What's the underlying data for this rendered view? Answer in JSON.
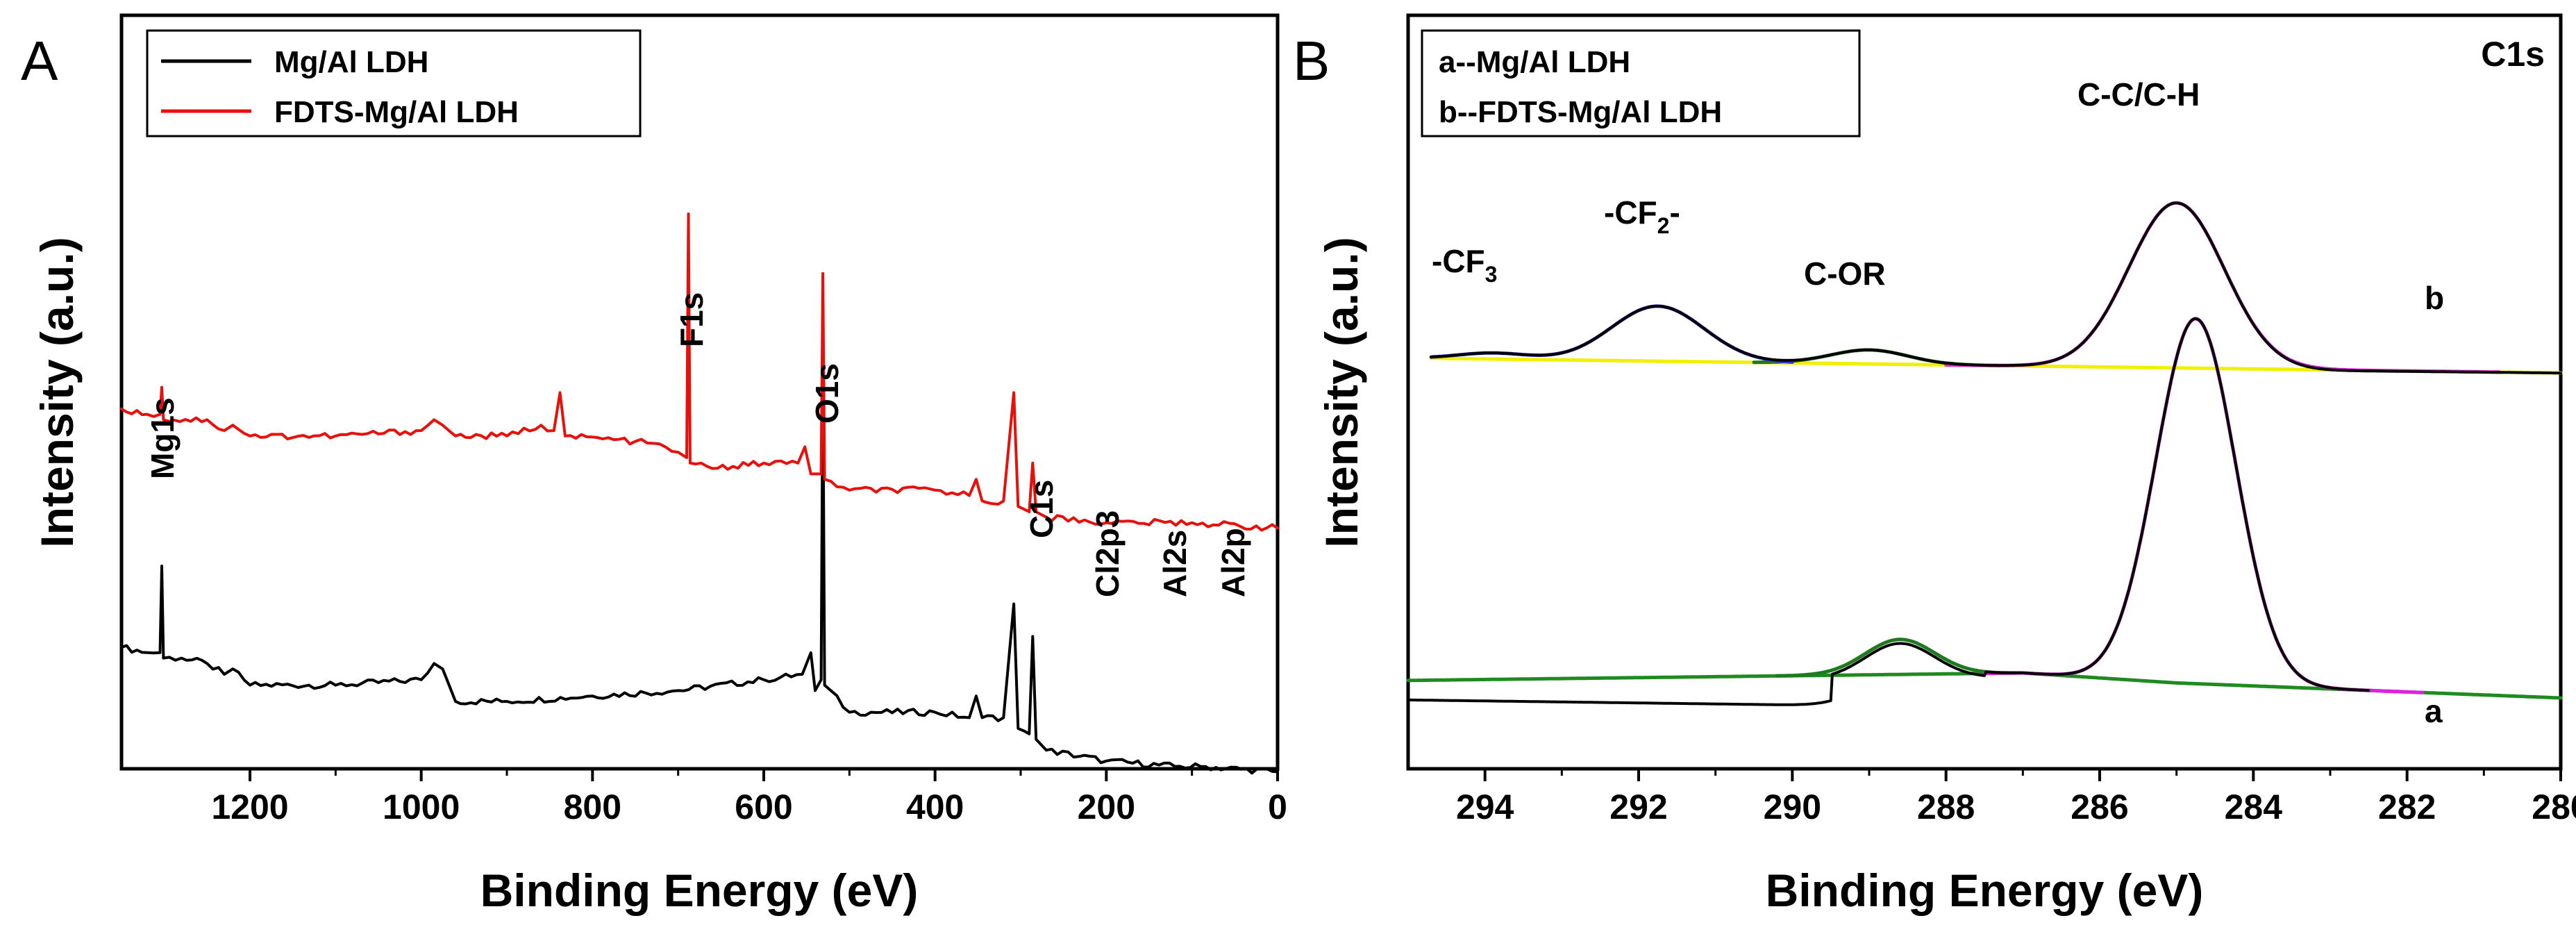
{
  "colors": {
    "mg_al_ldh": "#000000",
    "fdts_mg_al_ldh": "#e8100b",
    "fit_c_c": "#e020e0",
    "fit_cf2": "#3b2fe0",
    "fit_c_or": "#1f7a1f",
    "baseline_b": "#f0f000",
    "baseline_a": "#1f8a1f"
  },
  "chart_data": [
    {
      "panel": "A",
      "type": "line",
      "xlabel": "Binding Energy (eV)",
      "ylabel": "Intensity (a.u.)",
      "xlim": [
        1350,
        0
      ],
      "x_reversed": true,
      "x_ticks": [
        1200,
        1000,
        800,
        600,
        400,
        200,
        0
      ],
      "y_ticks_shown": false,
      "grid": false,
      "legend_position": "top-left",
      "series": [
        {
          "name": "Mg/Al LDH",
          "color": "black",
          "points": [
            [
              1350,
              0.1
            ],
            [
              1320,
              0.09
            ],
            [
              1305,
              0.09
            ],
            [
              1303,
              0.25
            ],
            [
              1301,
              0.08
            ],
            [
              1280,
              0.08
            ],
            [
              1250,
              0.07
            ],
            [
              1230,
              0.05
            ],
            [
              1220,
              0.06
            ],
            [
              1200,
              0.03
            ],
            [
              1100,
              0.03
            ],
            [
              1000,
              0.04
            ],
            [
              985,
              0.07
            ],
            [
              975,
              0.06
            ],
            [
              960,
              0.0
            ],
            [
              900,
              0.0
            ],
            [
              800,
              0.01
            ],
            [
              700,
              0.02
            ],
            [
              600,
              0.04
            ],
            [
              555,
              0.05
            ],
            [
              545,
              0.09
            ],
            [
              540,
              0.02
            ],
            [
              533,
              0.04
            ],
            [
              531,
              0.62
            ],
            [
              529,
              0.03
            ],
            [
              500,
              -0.02
            ],
            [
              400,
              -0.02
            ],
            [
              360,
              -0.03
            ],
            [
              352,
              0.01
            ],
            [
              345,
              -0.03
            ],
            [
              320,
              -0.03
            ],
            [
              308,
              0.18
            ],
            [
              303,
              -0.05
            ],
            [
              290,
              -0.06
            ],
            [
              286,
              0.12
            ],
            [
              282,
              -0.07
            ],
            [
              270,
              -0.09
            ],
            [
              200,
              -0.11
            ],
            [
              120,
              -0.12
            ],
            [
              90,
              -0.12
            ],
            [
              0,
              -0.13
            ]
          ]
        },
        {
          "name": "FDTS-Mg/Al LDH",
          "color": "red",
          "points": [
            [
              1350,
              0.54
            ],
            [
              1320,
              0.53
            ],
            [
              1305,
              0.53
            ],
            [
              1303,
              0.58
            ],
            [
              1301,
              0.52
            ],
            [
              1250,
              0.52
            ],
            [
              1230,
              0.5
            ],
            [
              1220,
              0.51
            ],
            [
              1200,
              0.49
            ],
            [
              1100,
              0.49
            ],
            [
              1000,
              0.5
            ],
            [
              985,
              0.52
            ],
            [
              975,
              0.51
            ],
            [
              960,
              0.49
            ],
            [
              900,
              0.49
            ],
            [
              860,
              0.51
            ],
            [
              845,
              0.5
            ],
            [
              838,
              0.57
            ],
            [
              832,
              0.49
            ],
            [
              750,
              0.48
            ],
            [
              715,
              0.47
            ],
            [
              700,
              0.46
            ],
            [
              690,
              0.45
            ],
            [
              688,
              0.9
            ],
            [
              686,
              0.44
            ],
            [
              660,
              0.43
            ],
            [
              600,
              0.44
            ],
            [
              560,
              0.44
            ],
            [
              552,
              0.47
            ],
            [
              545,
              0.42
            ],
            [
              533,
              0.42
            ],
            [
              531,
              0.79
            ],
            [
              529,
              0.41
            ],
            [
              500,
              0.39
            ],
            [
              400,
              0.39
            ],
            [
              360,
              0.38
            ],
            [
              352,
              0.41
            ],
            [
              345,
              0.37
            ],
            [
              320,
              0.37
            ],
            [
              308,
              0.57
            ],
            [
              303,
              0.36
            ],
            [
              290,
              0.35
            ],
            [
              286,
              0.44
            ],
            [
              282,
              0.35
            ],
            [
              270,
              0.34
            ],
            [
              200,
              0.33
            ],
            [
              100,
              0.33
            ],
            [
              0,
              0.32
            ]
          ]
        }
      ],
      "annotations": [
        {
          "text": "Mg1s",
          "x": 1305
        },
        {
          "text": "F1s",
          "x": 688
        },
        {
          "text": "O1s",
          "x": 531
        },
        {
          "text": "C1s",
          "x": 285
        },
        {
          "text": "Cl2p3",
          "x": 200
        },
        {
          "text": "Al2s",
          "x": 120
        },
        {
          "text": "Al2p",
          "x": 75
        }
      ]
    },
    {
      "panel": "B",
      "type": "line",
      "title": "C1s",
      "xlabel": "Binding Energy (eV)",
      "ylabel": "Intensity (a.u.)",
      "xlim": [
        295,
        280
      ],
      "x_reversed": true,
      "x_ticks": [
        294,
        292,
        290,
        288,
        286,
        284,
        282,
        280
      ],
      "y_ticks_shown": false,
      "grid": false,
      "legend_position": "top-left",
      "legend": [
        "a--Mg/Al LDH",
        "b--FDTS-Mg/Al LDH"
      ],
      "spectra": [
        {
          "label": "b",
          "offset": 0.63,
          "peaks": [
            {
              "name": "-CF3",
              "center": 293.9,
              "height": 0.012,
              "width": 0.45
            },
            {
              "name": "-CF2-",
              "center": 291.75,
              "height": 0.11,
              "width": 0.6
            },
            {
              "name": "C-OR",
              "center": 289.0,
              "height": 0.028,
              "width": 0.5
            },
            {
              "name": "C-C/C-H",
              "center": 285.0,
              "height": 0.33,
              "width": 0.62
            }
          ],
          "baseline": [
            [
              295,
              0.05
            ],
            [
              280,
              0.02
            ]
          ]
        },
        {
          "label": "a",
          "offset": 0.0,
          "peaks": [
            {
              "name": "C-OR",
              "center": 288.6,
              "height": 0.07,
              "width": 0.45
            },
            {
              "name": "C-C/C-H",
              "center": 284.75,
              "height": 0.73,
              "width": 0.52
            }
          ],
          "baseline": [
            [
              295,
              0.035
            ],
            [
              287,
              0.05
            ],
            [
              285,
              0.03
            ],
            [
              280,
              0.0
            ]
          ]
        }
      ],
      "annotations": [
        {
          "text": "-CF3",
          "x": 293.9
        },
        {
          "text": "-CF2-",
          "x": 291.75
        },
        {
          "text": "C-OR",
          "x": 288.9
        },
        {
          "text": "C-C/C-H",
          "x": 285.0
        }
      ]
    }
  ],
  "panelA": {
    "letter": "A",
    "xlabel": "Binding Energy (eV)",
    "ylabel": "Intensity (a.u.)",
    "ticks": [
      "1200",
      "1000",
      "800",
      "600",
      "400",
      "200",
      "0"
    ],
    "legend": [
      "Mg/Al LDH",
      "FDTS-Mg/Al LDH"
    ],
    "peaks": [
      "Mg1s",
      "F1s",
      "O1s",
      "C1s",
      "Cl2p3",
      "Al2s",
      "Al2p"
    ]
  },
  "panelB": {
    "letter": "B",
    "title": "C1s",
    "xlabel": "Binding Energy (eV)",
    "ylabel": "Intensity (a.u.)",
    "ticks": [
      "294",
      "292",
      "290",
      "288",
      "286",
      "284",
      "282",
      "280"
    ],
    "legend": [
      "a--Mg/Al LDH",
      "b--FDTS-Mg/Al LDH"
    ],
    "peak_cf3": "-CF",
    "peak_cf3_sub": "3",
    "peak_cf2": "-CF",
    "peak_cf2_sub": "2",
    "peak_cf2_tail": "-",
    "peak_cor": "C-OR",
    "peak_cc": "C-C/C-H",
    "curve_b": "b",
    "curve_a": "a"
  }
}
